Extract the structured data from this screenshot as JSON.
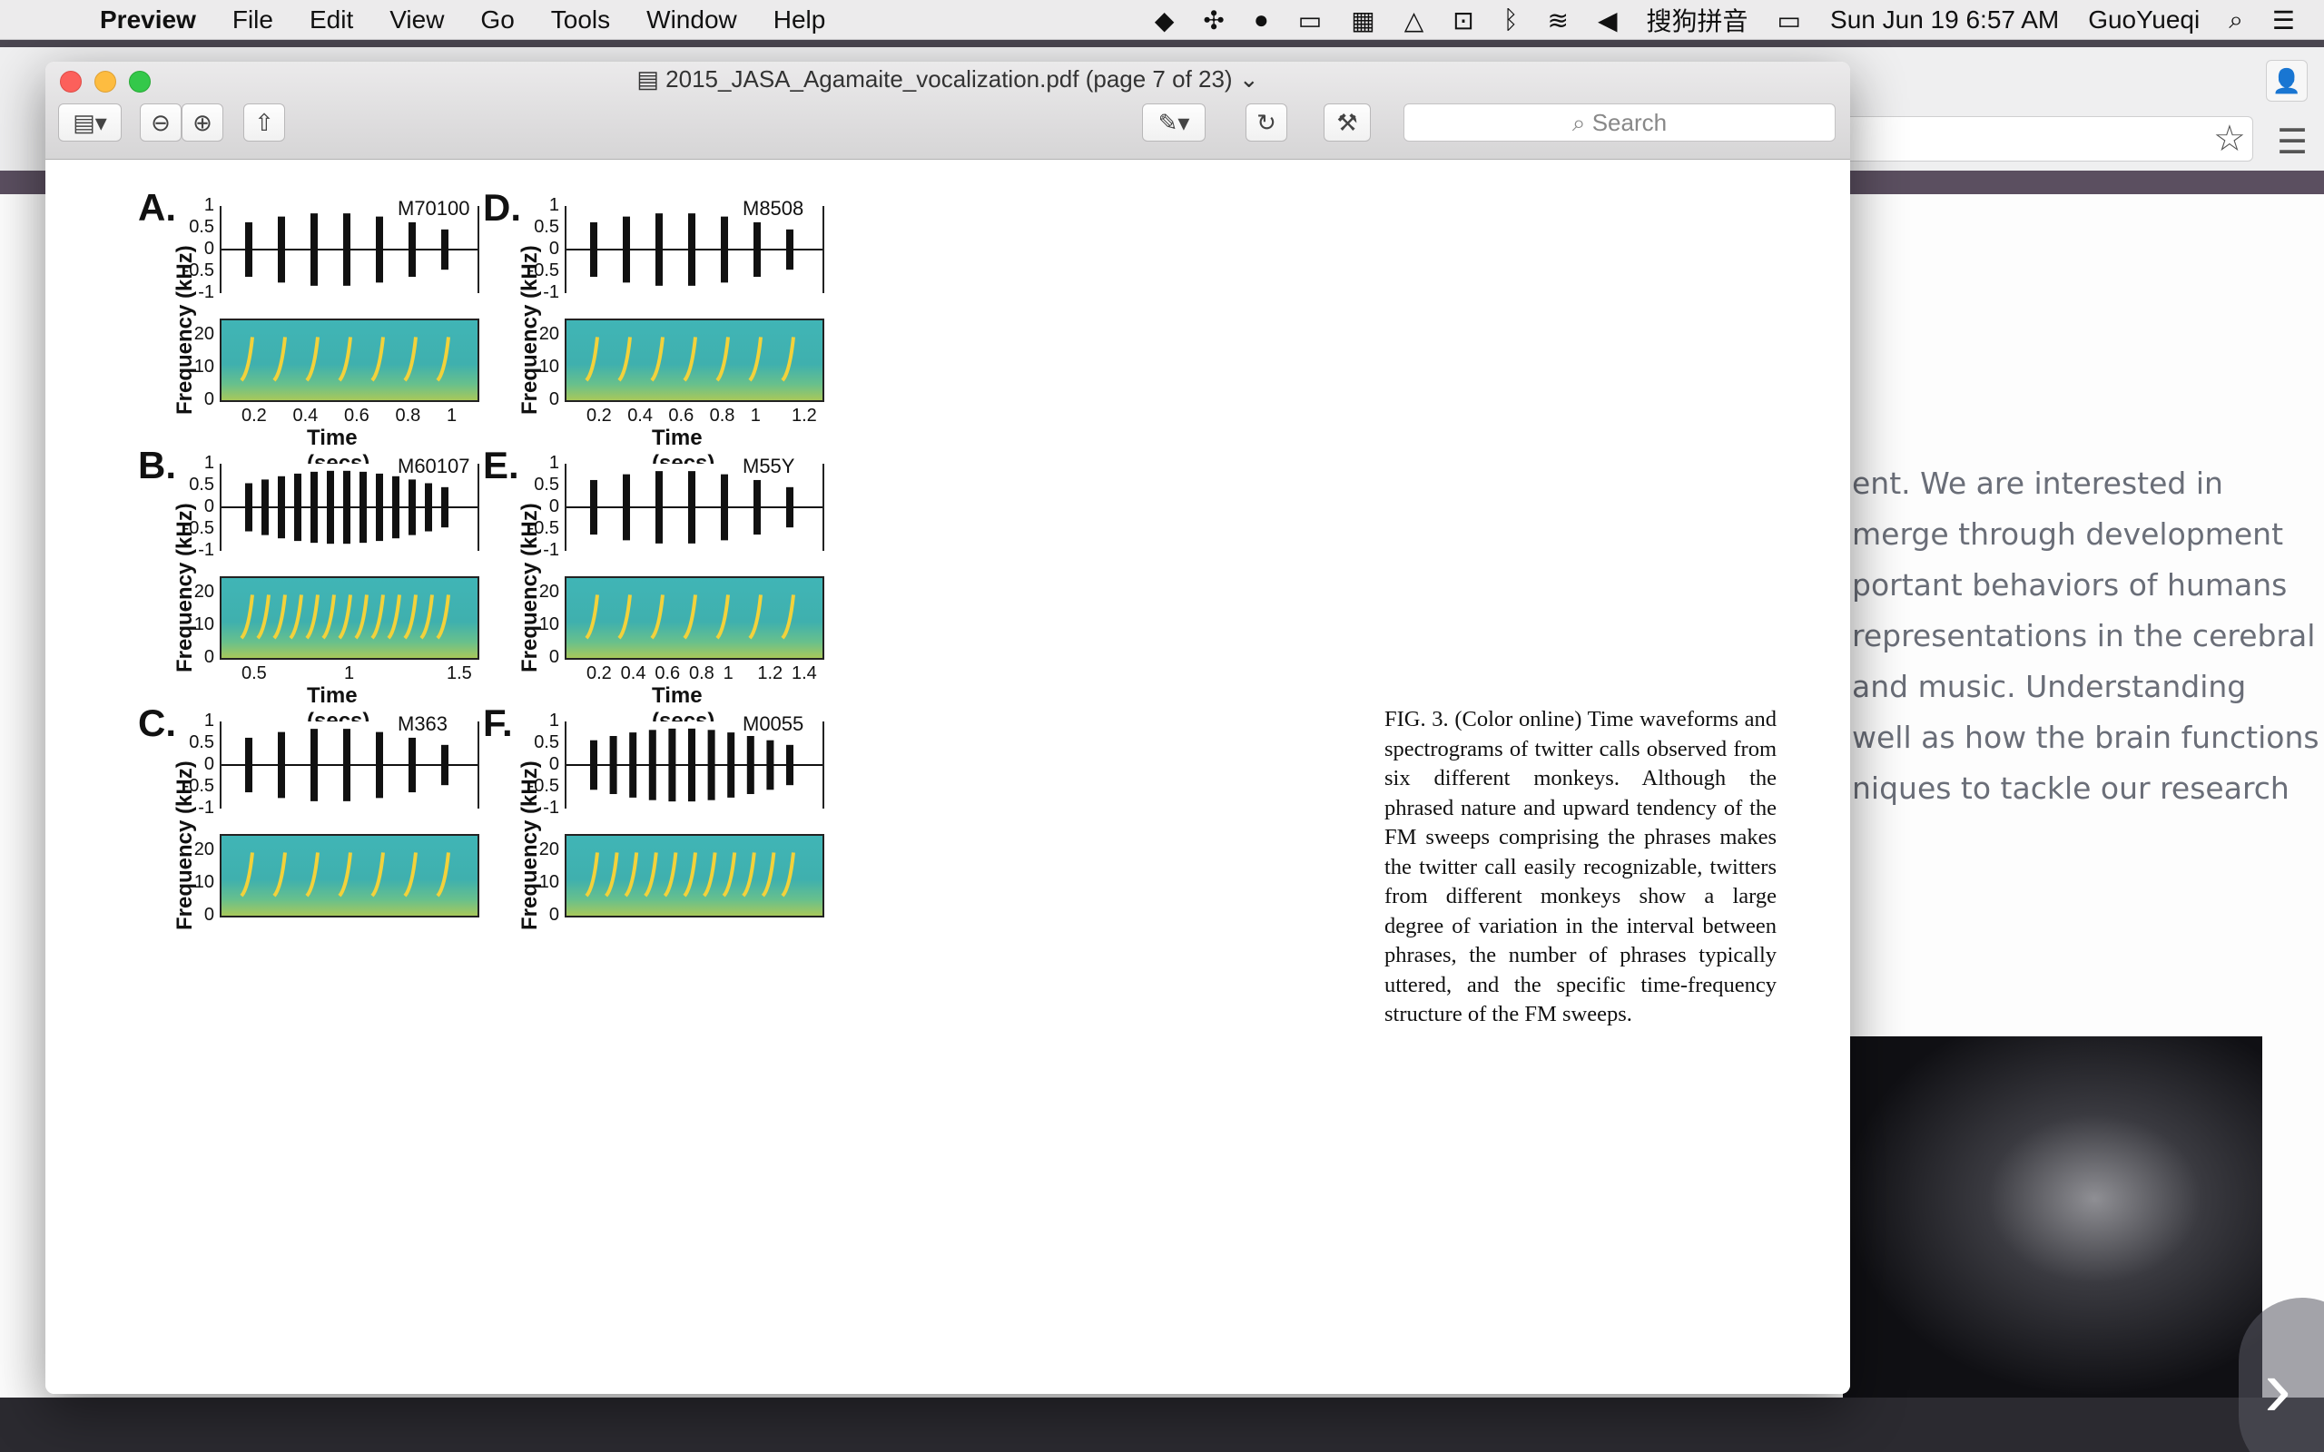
{
  "menubar": {
    "app": "Preview",
    "items": [
      "File",
      "Edit",
      "View",
      "Go",
      "Tools",
      "Window",
      "Help"
    ],
    "status": {
      "ime": "搜狗拼音",
      "clock": "Sun Jun 19  6:57 AM",
      "user": "GuoYueqi"
    }
  },
  "window": {
    "title": "2015_JASA_Agamaite_vocalization.pdf (page 7 of 23)",
    "search_placeholder": "Search"
  },
  "background_page": {
    "lines": [
      "ent. We are interested in",
      "merge through development",
      "portant behaviors of humans",
      "representations in the cerebral",
      "and music. Understanding",
      "well as how the brain functions",
      "niques to tackle our research"
    ]
  },
  "figure": {
    "caption": "FIG. 3. (Color online) Time waveforms and spectrograms of twitter calls observed from six different monkeys. Although the phrased nature and upward tendency of the FM sweeps comprising the phrases makes the twitter call easily recognizable, twitters from different monkeys show a large degree of variation in the interval between phrases, the number of phrases typically uttered, and the specific time-frequency structure of the FM sweeps.",
    "xlabel": "Time (secs)",
    "ylabel": "Frequency (kHz)",
    "wave_ticks": [
      "1",
      "0.5",
      "0",
      "-0.5",
      "-1"
    ],
    "freq_ticks": [
      "20",
      "10",
      "0"
    ],
    "panels": [
      {
        "label": "A.",
        "id": "M70100",
        "xticks": [
          "0.2",
          "0.4",
          "0.6",
          "0.8",
          "1"
        ],
        "max_t": 1.12
      },
      {
        "label": "B.",
        "id": "M60107",
        "xticks": [
          "0.5",
          "1",
          "1.5"
        ],
        "max_t": 1.6
      },
      {
        "label": "C.",
        "id": "M363",
        "xticks": [],
        "max_t": 1.0
      },
      {
        "label": "D.",
        "id": "M8508",
        "xticks": [
          "0.2",
          "0.4",
          "0.6",
          "0.8",
          "1",
          "1.2"
        ],
        "max_t": 1.3
      },
      {
        "label": "E.",
        "id": "M55Y",
        "xticks": [
          "0.2",
          "0.4",
          "0.6",
          "0.8",
          "1",
          "1.2",
          "1.4"
        ],
        "max_t": 1.6
      },
      {
        "label": "F.",
        "id": "M0055",
        "xticks": [],
        "max_t": 1.0
      }
    ]
  }
}
